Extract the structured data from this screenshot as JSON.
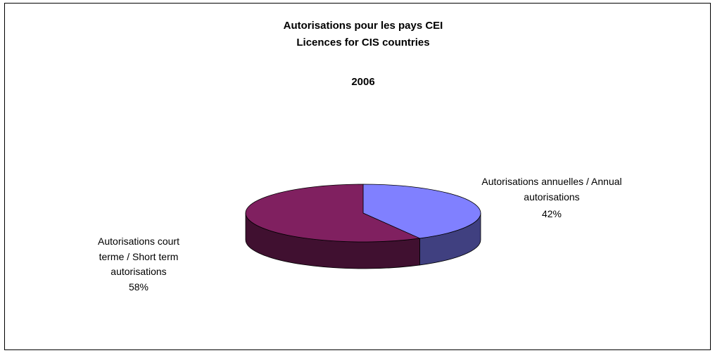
{
  "chart_data": {
    "type": "pie",
    "title": "Autorisations pour les pays CEI",
    "subtitle": "Licences for CIS countries",
    "year": "2006",
    "categories": [
      "Autorisations annuelles / Annual autorisations",
      "Autorisations court terme / Short term autorisations"
    ],
    "values": [
      42,
      58
    ],
    "value_labels": [
      "42%",
      "58%"
    ],
    "colors": [
      "#8080ff",
      "#802060"
    ],
    "side_colors": [
      "#404080",
      "#401030"
    ]
  }
}
